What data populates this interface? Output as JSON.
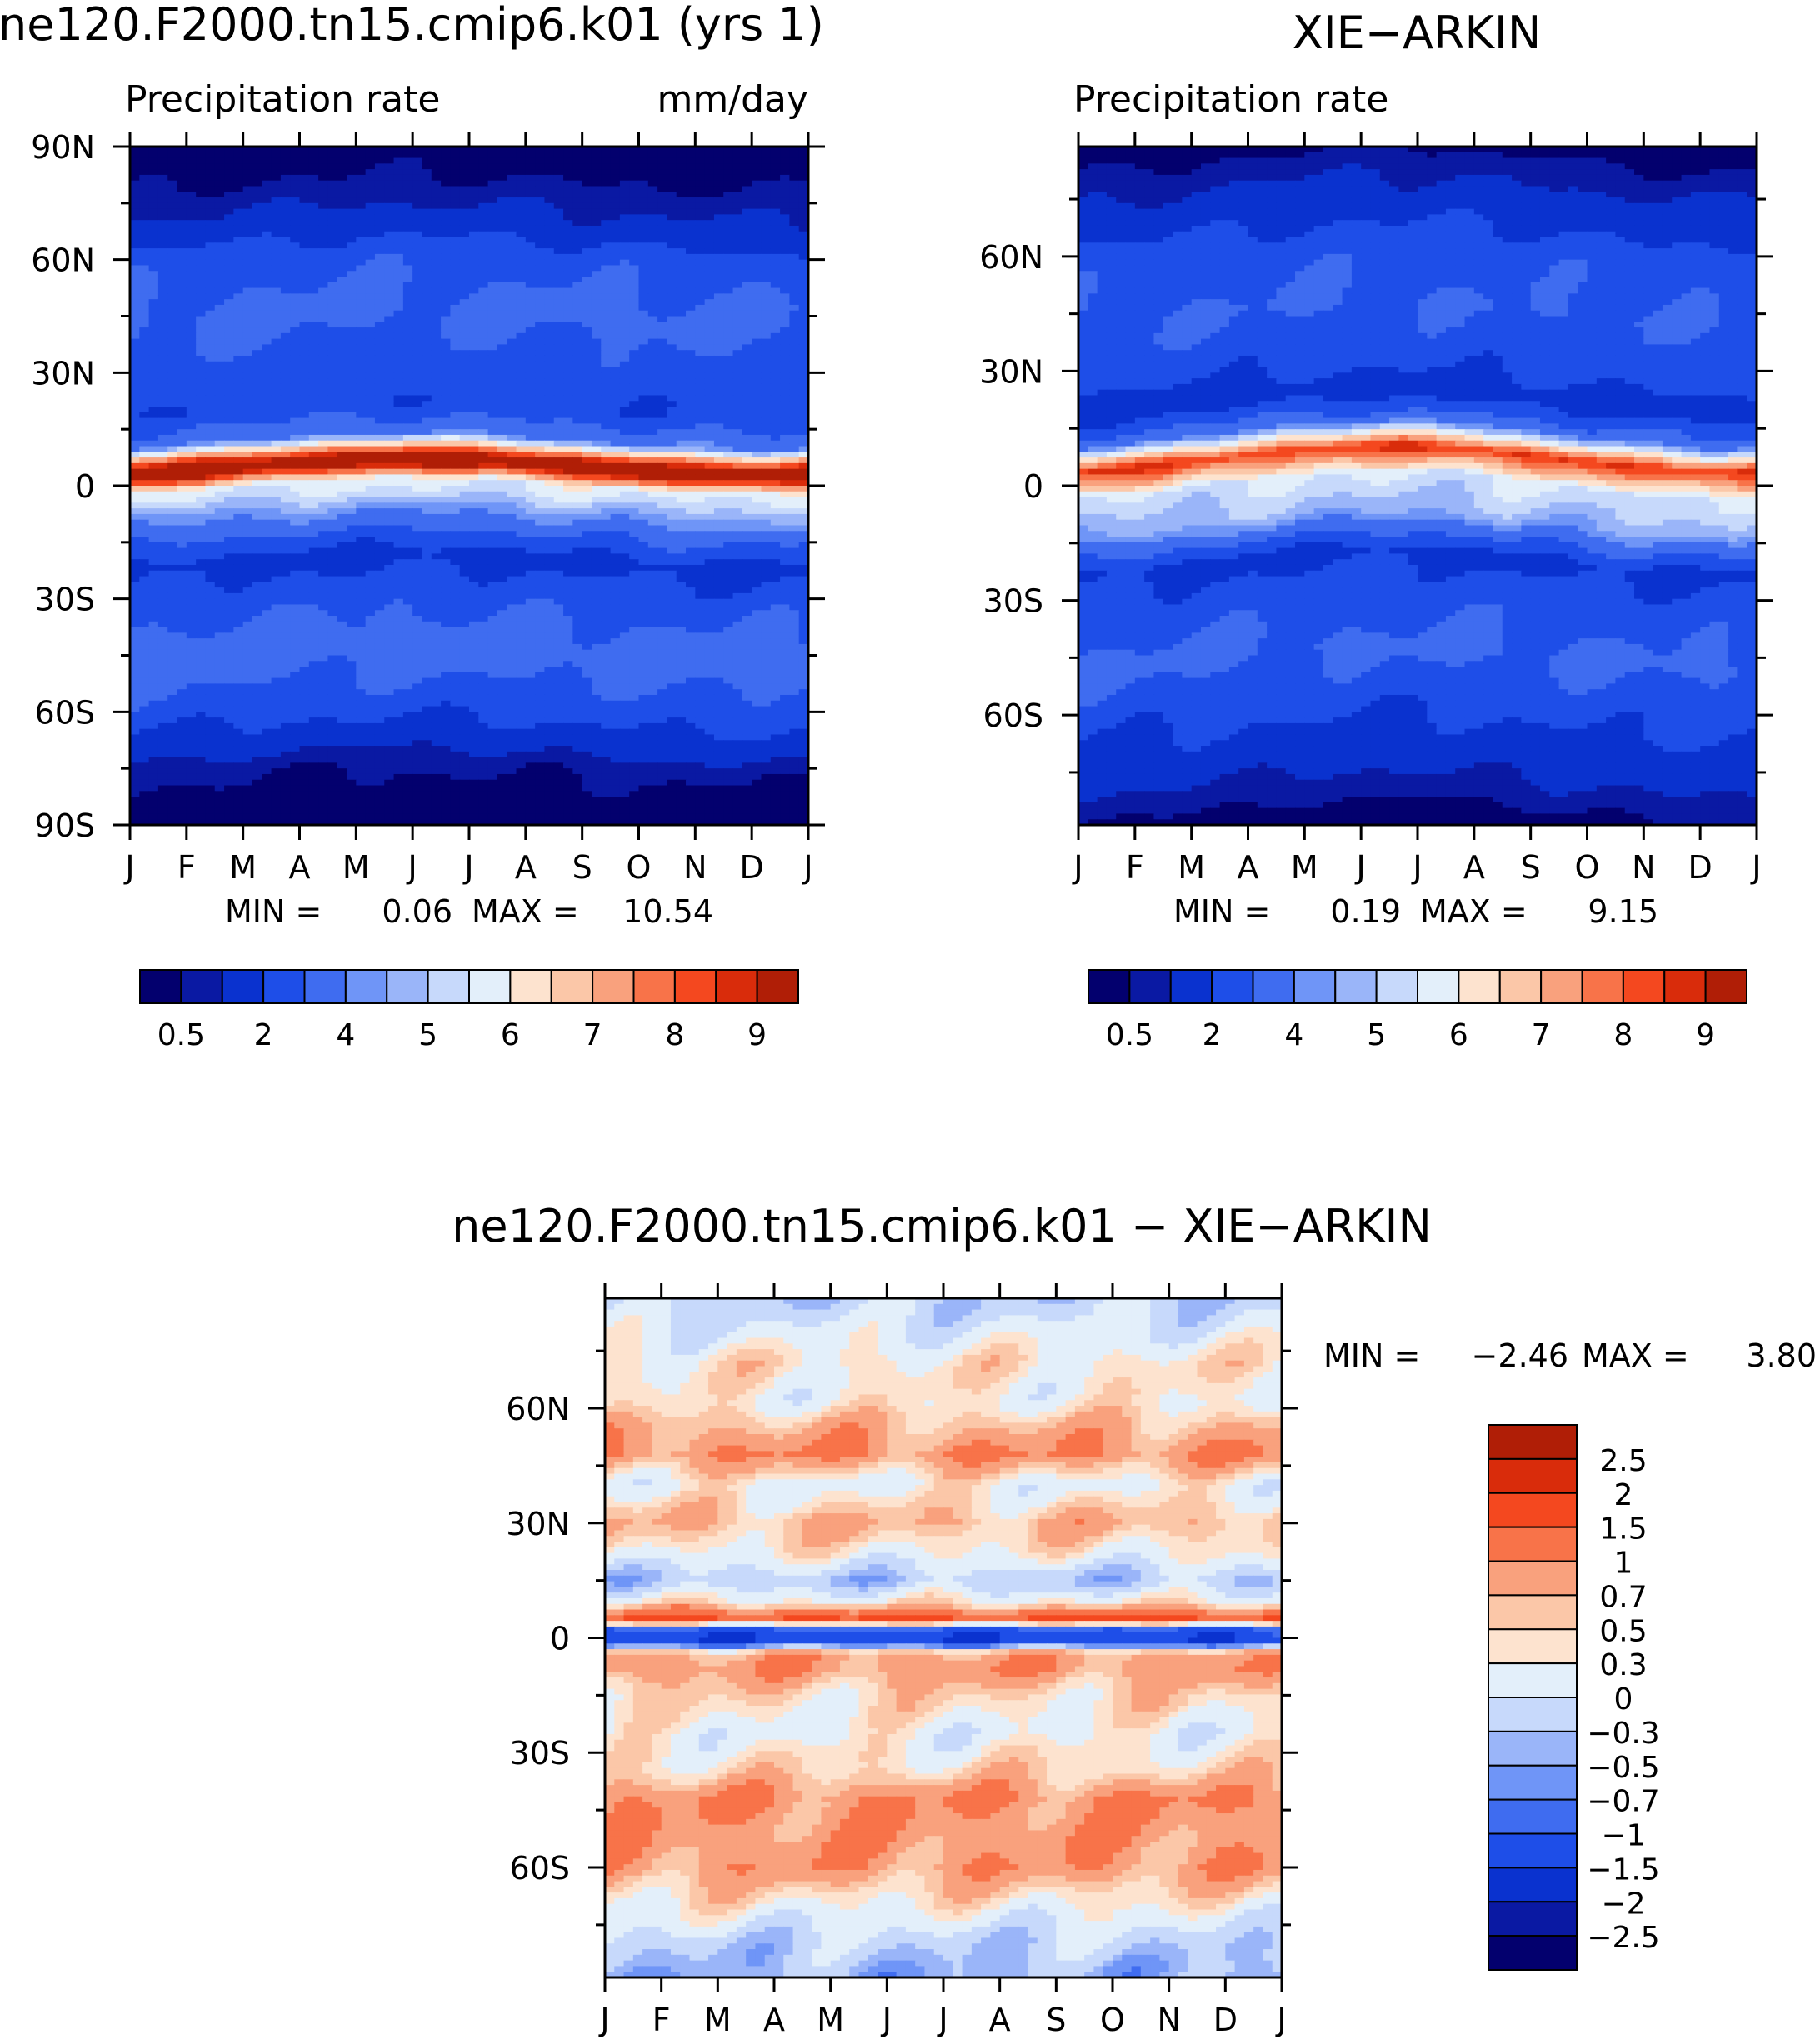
{
  "chart_data": [
    {
      "id": "panel_model",
      "type": "heatmap",
      "title": "ne120.F2000.tn15.cmip6.k01 (yrs 1)",
      "subtitle_left": "Precipitation rate",
      "subtitle_right": "mm/day",
      "x_ticks": [
        "J",
        "F",
        "M",
        "A",
        "M",
        "J",
        "J",
        "A",
        "S",
        "O",
        "N",
        "D",
        "J"
      ],
      "y_ticks": [
        "90N",
        "60N",
        "30N",
        "0",
        "30S",
        "60S",
        "90S"
      ],
      "y_tick_values": [
        90,
        60,
        30,
        0,
        -30,
        -60,
        -90
      ],
      "ylim": [
        -90,
        90
      ],
      "min_max": {
        "min_label": "MIN =",
        "min": "0.06",
        "max_label": "MAX =",
        "max": "10.54"
      },
      "colorbar": {
        "levels": [
          0.5,
          1,
          2,
          3,
          4,
          4.5,
          5,
          5.5,
          6,
          6.5,
          7,
          7.5,
          8,
          8.5,
          9
        ],
        "tick_labels": [
          "0.5",
          "2",
          "4",
          "5",
          "6",
          "7",
          "8",
          "9"
        ],
        "tick_after_index": [
          0,
          2,
          4,
          6,
          8,
          10,
          12,
          14
        ]
      },
      "field": {
        "description_free_params": {
          "itcz_lat_start": 5,
          "itcz_amp": 3,
          "itcz_peak": 10.5,
          "itcz_width": 4.5
        },
        "zonal_profile": [
          [
            -90,
            0.1
          ],
          [
            -75,
            0.6
          ],
          [
            -60,
            2.4
          ],
          [
            -45,
            3.6
          ],
          [
            -30,
            2.6
          ],
          [
            -20,
            1.6
          ],
          [
            -10,
            3.8
          ],
          [
            -3,
            5.4
          ],
          [
            0,
            5.8
          ],
          [
            5,
            10.5
          ],
          [
            12,
            3.9
          ],
          [
            20,
            2.2
          ],
          [
            30,
            2.5
          ],
          [
            45,
            3.3
          ],
          [
            60,
            2.6
          ],
          [
            70,
            1.2
          ],
          [
            80,
            0.5
          ],
          [
            90,
            0.2
          ]
        ]
      }
    },
    {
      "id": "panel_obs",
      "type": "heatmap",
      "title": "XIE-ARKIN",
      "subtitle_left": "Precipitation rate",
      "subtitle_right": "",
      "x_ticks": [
        "J",
        "F",
        "M",
        "A",
        "M",
        "J",
        "J",
        "A",
        "S",
        "O",
        "N",
        "D",
        "J"
      ],
      "y_ticks": [
        "60N",
        "30N",
        "0",
        "30S",
        "60S"
      ],
      "y_tick_values": [
        60,
        30,
        0,
        -30,
        -60
      ],
      "ylim": [
        -88.75,
        88.75
      ],
      "min_max": {
        "min_label": "MIN =",
        "min": "0.19",
        "max_label": "MAX =",
        "max": "9.15"
      },
      "colorbar": {
        "levels": [
          0.5,
          1,
          2,
          3,
          4,
          4.5,
          5,
          5.5,
          6,
          6.5,
          7,
          7.5,
          8,
          8.5,
          9
        ],
        "tick_labels": [
          "0.5",
          "2",
          "4",
          "5",
          "6",
          "7",
          "8",
          "9"
        ],
        "tick_after_index": [
          0,
          2,
          4,
          6,
          8,
          10,
          12,
          14
        ]
      },
      "field": {
        "zonal_profile": [
          [
            -88,
            0.3
          ],
          [
            -75,
            1.2
          ],
          [
            -60,
            2.2
          ],
          [
            -45,
            3.2
          ],
          [
            -30,
            2.5
          ],
          [
            -20,
            1.7
          ],
          [
            -10,
            4.6
          ],
          [
            -3,
            5.3
          ],
          [
            0,
            5.5
          ],
          [
            7,
            8.6
          ],
          [
            14,
            3.6
          ],
          [
            22,
            1.4
          ],
          [
            30,
            2.3
          ],
          [
            45,
            3.0
          ],
          [
            60,
            2.6
          ],
          [
            72,
            1.4
          ],
          [
            88,
            0.3
          ]
        ]
      }
    },
    {
      "id": "panel_diff",
      "type": "heatmap",
      "title": "ne120.F2000.tn15.cmip6.k01 - XIE-ARKIN",
      "x_ticks": [
        "J",
        "F",
        "M",
        "A",
        "M",
        "J",
        "J",
        "A",
        "S",
        "O",
        "N",
        "D",
        "J"
      ],
      "y_ticks": [
        "60N",
        "30N",
        "0",
        "30S",
        "60S"
      ],
      "y_tick_values": [
        60,
        30,
        0,
        -30,
        -60
      ],
      "ylim": [
        -88.75,
        88.75
      ],
      "min_max": {
        "min_label": "MIN =",
        "min": "-2.46",
        "max_label": "MAX =",
        "max": "3.80"
      },
      "colorbar": {
        "levels": [
          -2.5,
          -2,
          -1.5,
          -1,
          -0.7,
          -0.5,
          -0.3,
          0,
          0.3,
          0.5,
          0.7,
          1,
          1.5,
          2,
          2.5
        ],
        "tick_labels": [
          "-2.5",
          "-2",
          "-1.5",
          "-1",
          "-0.7",
          "-0.5",
          "-0.3",
          "0",
          "0.3",
          "0.5",
          "0.7",
          "1",
          "1.5",
          "2",
          "2.5"
        ]
      },
      "field": {
        "zonal_profile": [
          [
            -88,
            -0.4
          ],
          [
            -80,
            -0.2
          ],
          [
            -72,
            0.2
          ],
          [
            -60,
            0.9
          ],
          [
            -50,
            0.9
          ],
          [
            -42,
            1.0
          ],
          [
            -35,
            0.5
          ],
          [
            -25,
            0.2
          ],
          [
            -15,
            0.5
          ],
          [
            -8,
            0.9
          ],
          [
            -4,
            0.8
          ],
          [
            -1,
            -1.4
          ],
          [
            2,
            -1.2
          ],
          [
            5,
            1.6
          ],
          [
            9,
            0.4
          ],
          [
            15,
            -0.3
          ],
          [
            22,
            0.3
          ],
          [
            30,
            0.7
          ],
          [
            40,
            0.2
          ],
          [
            48,
            1.0
          ],
          [
            55,
            0.7
          ],
          [
            62,
            0.3
          ],
          [
            72,
            0.4
          ],
          [
            80,
            0.1
          ],
          [
            88,
            -0.2
          ]
        ]
      }
    }
  ],
  "colors": {
    "sequential": [
      "#03006e",
      "#0a19a3",
      "#0a32cf",
      "#1e4ee8",
      "#3f6cf0",
      "#6f95f7",
      "#9ab5f9",
      "#c7d9fb",
      "#e3effa",
      "#fde3cf",
      "#fbc7a8",
      "#f9a17d",
      "#f87349",
      "#f4481f",
      "#d92c0b",
      "#b01e06",
      "#7d0202"
    ],
    "diverging": [
      "#03006e",
      "#0a19a3",
      "#0a32cf",
      "#1e4ee8",
      "#3f6cf0",
      "#6f95f7",
      "#9ab5f9",
      "#c7d9fb",
      "#e3effa",
      "#fde3cf",
      "#fbc7a8",
      "#f9a17d",
      "#f87349",
      "#f4481f",
      "#d92c0b",
      "#b01e06",
      "#7d0202"
    ]
  }
}
